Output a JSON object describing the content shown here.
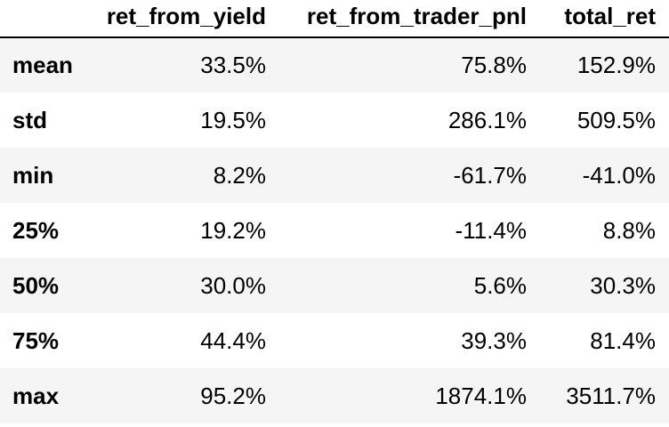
{
  "table": {
    "columns": [
      "",
      "ret_from_yield",
      "ret_from_trader_pnl",
      "total_ret"
    ],
    "rows": [
      {
        "label": "mean",
        "values": [
          "33.5%",
          "75.8%",
          "152.9%"
        ]
      },
      {
        "label": "std",
        "values": [
          "19.5%",
          "286.1%",
          "509.5%"
        ]
      },
      {
        "label": "min",
        "values": [
          "8.2%",
          "-61.7%",
          "-41.0%"
        ]
      },
      {
        "label": "25%",
        "values": [
          "19.2%",
          "-11.4%",
          "8.8%"
        ]
      },
      {
        "label": "50%",
        "values": [
          "30.0%",
          "5.6%",
          "30.3%"
        ]
      },
      {
        "label": "75%",
        "values": [
          "44.4%",
          "39.3%",
          "81.4%"
        ]
      },
      {
        "label": "max",
        "values": [
          "95.2%",
          "1874.1%",
          "3511.7%"
        ]
      }
    ]
  }
}
